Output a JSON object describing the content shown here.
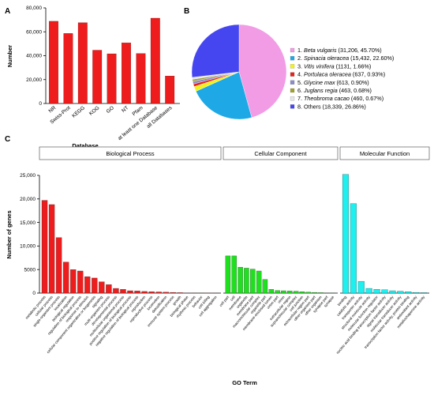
{
  "panels": {
    "a": "A",
    "b": "B",
    "c": "C"
  },
  "chart_data": [
    {
      "type": "bar",
      "panel": "A",
      "categories": [
        "NR",
        "Swiss-Prot",
        "KEGG",
        "KOG",
        "GO",
        "NT",
        "Pfam",
        "at least one Database",
        "all Databases"
      ],
      "values": [
        68800,
        58600,
        67600,
        44600,
        41600,
        50700,
        41800,
        71400,
        23000
      ],
      "ylabel": "Number",
      "xlabel": "Database",
      "ylim": [
        0,
        80000
      ],
      "yticks": [
        "0",
        "20,000",
        "40,000",
        "60,000",
        "80,000"
      ],
      "grid": false,
      "color": "#ee1c1c"
    },
    {
      "type": "pie",
      "panel": "B",
      "legend_position": "right",
      "slices": [
        {
          "num": "1.",
          "name": "Beta vulgaris",
          "stats": "(31,206, 45.70%)",
          "value": 45.7,
          "color": "#f29ce6"
        },
        {
          "num": "2.",
          "name": "Spinacia oleracea",
          "stats": "(15,432, 22.60%)",
          "value": 22.6,
          "color": "#1ea9e6"
        },
        {
          "num": "3.",
          "name": "Vitis vinifera",
          "stats": "(1131, 1.66%)",
          "value": 1.66,
          "color": "#f2f21a"
        },
        {
          "num": "4.",
          "name": "Portulaca  oleracea",
          "stats": "(637, 0.93%)",
          "value": 0.93,
          "color": "#e6231a"
        },
        {
          "num": "5.",
          "name": "Glycine max",
          "stats": "(613, 0.90%)",
          "value": 0.9,
          "color": "#8c8cc8"
        },
        {
          "num": "6.",
          "name": "Juglans regia",
          "stats": "(463, 0.68%)",
          "value": 0.68,
          "color": "#a0a032"
        },
        {
          "num": "7.",
          "name": "Theobroma cacao",
          "stats": "(460, 0.67%)",
          "value": 0.67,
          "color": "#e6e6e6"
        },
        {
          "num": "8.",
          "name": "Others",
          "stats": "(18,339, 26.86%)",
          "value": 26.86,
          "color": "#4646f0"
        }
      ]
    },
    {
      "type": "bar",
      "panel": "C",
      "ylabel": "Number of genes",
      "xlabel": "GO Term",
      "ylim": [
        0,
        25000
      ],
      "yticks": [
        "0",
        "5000",
        "10,000",
        "15,000",
        "20,000",
        "25,000"
      ],
      "grid": false,
      "facets": [
        {
          "name": "Biological Process",
          "color": "#ee1c1c",
          "categories": [
            "metabolic process",
            "cellular process",
            "single-organism process",
            "localization",
            "biological regulation",
            "regulation of biological process",
            "response to stimulus",
            "cellular component organization or biogenesis",
            "signaling",
            "multi-organism process",
            "developmental process",
            "multicellular organismal process",
            "positive regulation of biological process",
            "negative regulation of biological process",
            "reproduction",
            "reproductive process",
            "locomotion",
            "detoxification",
            "immune system process",
            "growth",
            "biological phase",
            "rhythmic process",
            "behavior",
            "cell killing",
            "cell aggregation"
          ],
          "values": [
            19700,
            18800,
            11800,
            6600,
            5000,
            4700,
            3500,
            3200,
            2400,
            1800,
            1000,
            800,
            500,
            450,
            350,
            300,
            250,
            200,
            150,
            100,
            60,
            40,
            30,
            20,
            10
          ]
        },
        {
          "name": "Cellular Component",
          "color": "#1fe01f",
          "categories": [
            "cell part",
            "cell",
            "membrane",
            "organelle",
            "membrane part",
            "macromolecular complex",
            "organelle part",
            "membrane-enclosed lumen",
            "virion part",
            "virion",
            "extracellular region",
            "supramolecular complex",
            "cell junction",
            "extracellular region part",
            "other organism part",
            "other organism",
            "synapse part",
            "synapse"
          ],
          "values": [
            7900,
            7900,
            5500,
            5300,
            5100,
            4700,
            2900,
            800,
            550,
            500,
            450,
            400,
            300,
            200,
            150,
            100,
            60,
            40
          ]
        },
        {
          "name": "Molecular Function",
          "color": "#1ef0f0",
          "categories": [
            "binding",
            "catalytic activity",
            "transporter activity",
            "structural molecule activity",
            "molecular function regulator",
            "nucleic acid binding transcription factor activity",
            "signal transducer activity",
            "molecular transducer activity",
            "transcription factor activity, protein binding",
            "antioxidant activity",
            "metallochaperone activity"
          ],
          "values": [
            25200,
            19000,
            2500,
            1000,
            800,
            700,
            500,
            400,
            300,
            150,
            100
          ]
        }
      ]
    }
  ]
}
